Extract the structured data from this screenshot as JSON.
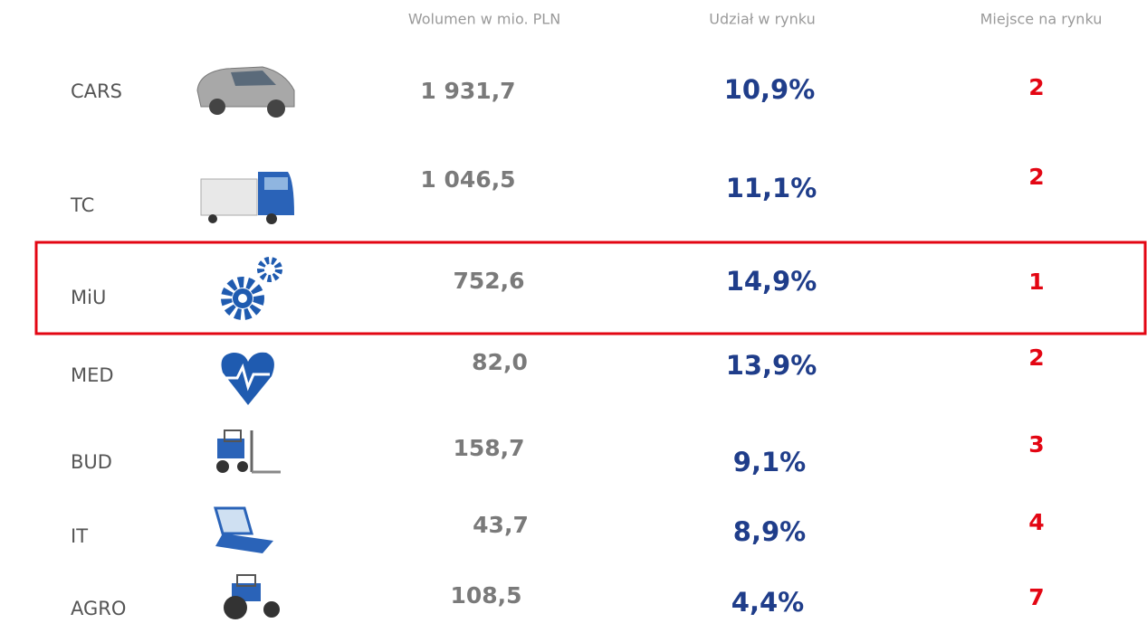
{
  "header": {
    "columns": [
      "Wolumen w mio. PLN",
      "Udział w rynku",
      "Miejsce na rynku"
    ]
  },
  "table": {
    "rows": [
      [
        "CARS",
        "1 931,7",
        "10,9%",
        "2"
      ],
      [
        "TC",
        "1 046,5",
        "11,1%",
        "2"
      ],
      [
        "MiU",
        "752,6",
        "14,9%",
        "1"
      ],
      [
        "MED",
        "82,0",
        "13,9%",
        "2"
      ],
      [
        "BUD",
        "158,7",
        "9,1%",
        "3"
      ],
      [
        "IT",
        "43,7",
        "8,9%",
        "4"
      ],
      [
        "AGRO",
        "108,5",
        "4,4%",
        "7"
      ]
    ]
  }
}
